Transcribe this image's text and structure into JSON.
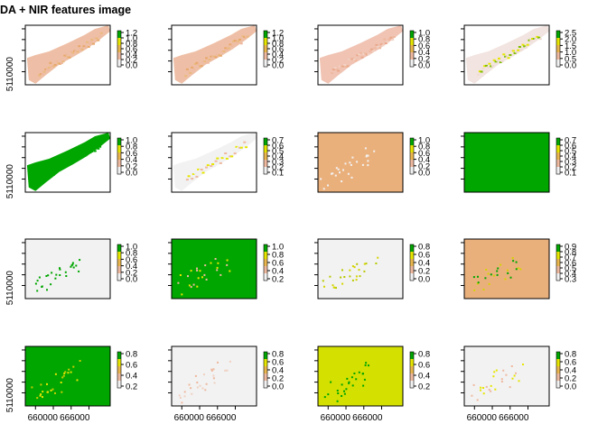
{
  "title": "DA + NIR features image",
  "chart_data": {
    "type": "heatmap",
    "title": "DA + NIR features image",
    "layout": "4 rows x 4 columns of raster panels, each with a legend to the right",
    "xlabel": "",
    "ylabel": "",
    "x_ticks": [
      "660000",
      "666000"
    ],
    "y_ticks": [
      "5110000"
    ],
    "x_ticks_shown_on": "bottom row only",
    "y_ticks_shown_on": "first column only",
    "palette": [
      "#00A600",
      "#E6E600",
      "#EAB64E",
      "#EEB99F",
      "#F2F2F2"
    ],
    "panels": [
      {
        "fill": "strip",
        "colors": [
          "#EEBFA6",
          "#EAB97D",
          "#E8A86A",
          "#EEB99F"
        ],
        "legend": [
          "1.2",
          "1.0",
          "0.8",
          "0.6",
          "0.4",
          "0.2",
          "0.0"
        ]
      },
      {
        "fill": "strip",
        "colors": [
          "#EEBFA6",
          "#EAB97D",
          "#E8A86A",
          "#EEB99F"
        ],
        "legend": [
          "1.2",
          "1.0",
          "0.8",
          "0.6",
          "0.4",
          "0.2",
          "0.0"
        ]
      },
      {
        "fill": "strip",
        "colors": [
          "#F0C3B3",
          "#EEB99F",
          "#E9A88A",
          "#F2D3C5"
        ],
        "legend": [
          "1.0",
          "0.8",
          "0.6",
          "0.4",
          "0.2",
          "0.0"
        ]
      },
      {
        "fill": "strip",
        "colors": [
          "#F2E4E0",
          "#F0DBD3",
          "#E6E600",
          "#7FBE00"
        ],
        "legend": [
          "2.5",
          "2.0",
          "1.5",
          "1.0",
          "0.5",
          "0.0"
        ]
      },
      {
        "fill": "strip",
        "colors": [
          "#00A600",
          "#00A600",
          "#00A600",
          "#00A600"
        ],
        "legend": [
          "1.0",
          "0.8",
          "0.6",
          "0.4",
          "0.2",
          "0.0"
        ]
      },
      {
        "fill": "strip",
        "colors": [
          "#F2F2F2",
          "#F0F0F0",
          "#EEB99F",
          "#E6E600"
        ],
        "legend": [
          "0.7",
          "0.6",
          "0.5",
          "0.4",
          "0.3",
          "0.2",
          "0.1"
        ]
      },
      {
        "fill": "full",
        "colors": [
          "#EAB07C",
          "#EAB07C",
          "#F2F2F2",
          "#F2F2F2"
        ],
        "legend": [
          "1.0",
          "0.8",
          "0.6",
          "0.4",
          "0.2",
          "0.0"
        ]
      },
      {
        "fill": "full",
        "colors": [
          "#00A600",
          "#00A600",
          "#00A600",
          "#00A600"
        ],
        "legend": [
          "0.7",
          "0.6",
          "0.5",
          "0.4",
          "0.3",
          "0.2",
          "0.1"
        ]
      },
      {
        "fill": "full",
        "colors": [
          "#F2F2F2",
          "#F2F2F2",
          "#00A600",
          "#00A600"
        ],
        "legend": [
          "1.0",
          "0.8",
          "0.6",
          "0.4",
          "0.2",
          "0.0"
        ]
      },
      {
        "fill": "full",
        "colors": [
          "#00A600",
          "#00A600",
          "#E6E600",
          "#EEB99F"
        ],
        "legend": [
          "1.0",
          "0.8",
          "0.6",
          "0.4",
          "0.2"
        ]
      },
      {
        "fill": "full",
        "colors": [
          "#F2F2F2",
          "#F2F2F2",
          "#D4D400",
          "#B8C800"
        ],
        "legend": [
          "0.8",
          "0.6",
          "0.4",
          "0.2",
          "0.0"
        ]
      },
      {
        "fill": "full",
        "colors": [
          "#EAB07C",
          "#EAB07C",
          "#D4D400",
          "#00A600"
        ],
        "legend": [
          "0.9",
          "0.8",
          "0.7",
          "0.6",
          "0.5",
          "0.4",
          "0.3"
        ]
      },
      {
        "fill": "full",
        "colors": [
          "#00A600",
          "#00A600",
          "#E6E600",
          "#C8CC00"
        ],
        "legend": [
          "0.8",
          "0.6",
          "0.4",
          "0.2"
        ]
      },
      {
        "fill": "full",
        "colors": [
          "#F2F2F2",
          "#F2F2F2",
          "#EEB99F",
          "#F0D0C0"
        ],
        "legend": [
          "0.8",
          "0.6",
          "0.4",
          "0.2",
          "0.0"
        ]
      },
      {
        "fill": "full",
        "colors": [
          "#D4E000",
          "#D4E000",
          "#00A600",
          "#00A600"
        ],
        "legend": [
          "0.8",
          "0.6",
          "0.4",
          "0.2"
        ]
      },
      {
        "fill": "full",
        "colors": [
          "#F2F2F2",
          "#F2F2F2",
          "#EEB99F",
          "#E6E600"
        ],
        "legend": [
          "0.8",
          "0.6",
          "0.4",
          "0.2",
          "0.0"
        ]
      }
    ]
  }
}
